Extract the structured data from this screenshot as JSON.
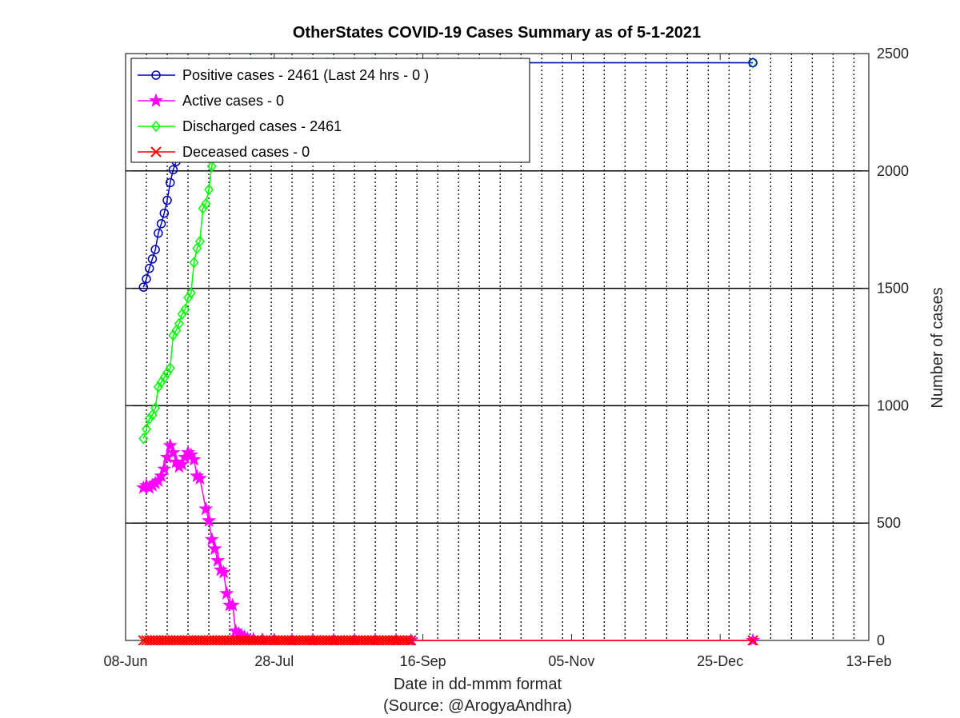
{
  "chart_data": {
    "type": "line",
    "title": "OtherStates COVID-19 Cases Summary as of 5-1-2021",
    "xlabel": "Date in dd-mmm format",
    "source_label": "(Source: @ArogyaAndhra)",
    "ylabel": "Number of cases",
    "x_ticks": [
      "08-Jun",
      "28-Jul",
      "16-Sep",
      "05-Nov",
      "25-Dec",
      "13-Feb"
    ],
    "y_ticks": [
      "0",
      "500",
      "1000",
      "1500",
      "2000",
      "2500"
    ],
    "xlim": [
      "2020-06-08",
      "2021-02-13"
    ],
    "ylim": [
      0,
      2500
    ],
    "x_grid": "dotted, every 7 days",
    "y_grid": "solid",
    "y_axis_side": "right",
    "legend_position": "top-left",
    "series": [
      {
        "name": "Positive cases - 2461 (Last 24 hrs - 0 )",
        "color": "#0000c0",
        "marker": "circle",
        "points": [
          [
            "2020-06-14",
            1505
          ],
          [
            "2020-06-15",
            1540
          ],
          [
            "2020-06-16",
            1585
          ],
          [
            "2020-06-17",
            1625
          ],
          [
            "2020-06-18",
            1665
          ],
          [
            "2020-06-19",
            1735
          ],
          [
            "2020-06-20",
            1775
          ],
          [
            "2020-06-21",
            1820
          ],
          [
            "2020-06-22",
            1875
          ],
          [
            "2020-06-23",
            1950
          ],
          [
            "2020-06-24",
            2005
          ],
          [
            "2020-06-25",
            2040
          ],
          [
            "2020-06-26",
            2120
          ],
          [
            "2020-06-27",
            2200
          ],
          [
            "2020-06-28",
            2280
          ],
          [
            "2020-06-29",
            2350
          ],
          [
            "2020-06-30",
            2410
          ],
          [
            "2020-07-01",
            2461
          ],
          [
            "2020-07-10",
            2461
          ],
          [
            "2020-07-20",
            2461
          ],
          [
            "2020-08-01",
            2461
          ],
          [
            "2020-08-15",
            2461
          ],
          [
            "2020-08-30",
            2461
          ],
          [
            "2020-09-10",
            2461
          ],
          [
            "2020-09-12",
            2461
          ],
          [
            "2021-01-05",
            2461
          ]
        ]
      },
      {
        "name": "Active cases - 0",
        "color": "#ff00ff",
        "marker": "star",
        "points": [
          [
            "2020-06-14",
            650
          ],
          [
            "2020-06-15",
            660
          ],
          [
            "2020-06-16",
            650
          ],
          [
            "2020-06-17",
            660
          ],
          [
            "2020-06-18",
            670
          ],
          [
            "2020-06-19",
            680
          ],
          [
            "2020-06-20",
            700
          ],
          [
            "2020-06-21",
            730
          ],
          [
            "2020-06-22",
            780
          ],
          [
            "2020-06-23",
            830
          ],
          [
            "2020-06-24",
            800
          ],
          [
            "2020-06-25",
            760
          ],
          [
            "2020-06-26",
            740
          ],
          [
            "2020-06-27",
            750
          ],
          [
            "2020-06-28",
            780
          ],
          [
            "2020-06-29",
            800
          ],
          [
            "2020-06-30",
            790
          ],
          [
            "2020-07-01",
            770
          ],
          [
            "2020-07-02",
            700
          ],
          [
            "2020-07-03",
            690
          ],
          [
            "2020-07-05",
            560
          ],
          [
            "2020-07-06",
            510
          ],
          [
            "2020-07-07",
            430
          ],
          [
            "2020-07-08",
            390
          ],
          [
            "2020-07-09",
            340
          ],
          [
            "2020-07-10",
            300
          ],
          [
            "2020-07-11",
            290
          ],
          [
            "2020-07-12",
            200
          ],
          [
            "2020-07-13",
            150
          ],
          [
            "2020-07-14",
            150
          ],
          [
            "2020-07-15",
            40
          ],
          [
            "2020-07-16",
            30
          ],
          [
            "2020-07-17",
            20
          ],
          [
            "2020-07-18",
            15
          ],
          [
            "2020-07-19",
            8
          ],
          [
            "2020-07-21",
            5
          ],
          [
            "2020-07-24",
            3
          ],
          [
            "2020-07-28",
            2
          ],
          [
            "2020-08-03",
            0
          ],
          [
            "2020-08-10",
            0
          ],
          [
            "2020-08-17",
            0
          ],
          [
            "2020-08-24",
            0
          ],
          [
            "2020-08-31",
            0
          ],
          [
            "2020-09-07",
            0
          ],
          [
            "2020-09-12",
            0
          ],
          [
            "2021-01-05",
            0
          ]
        ]
      },
      {
        "name": "Discharged cases - 2461",
        "color": "#00ff00",
        "marker": "diamond",
        "points": [
          [
            "2020-06-14",
            860
          ],
          [
            "2020-06-15",
            900
          ],
          [
            "2020-06-16",
            945
          ],
          [
            "2020-06-17",
            960
          ],
          [
            "2020-06-18",
            990
          ],
          [
            "2020-06-19",
            1080
          ],
          [
            "2020-06-20",
            1100
          ],
          [
            "2020-06-21",
            1120
          ],
          [
            "2020-06-22",
            1140
          ],
          [
            "2020-06-23",
            1160
          ],
          [
            "2020-06-24",
            1300
          ],
          [
            "2020-06-25",
            1320
          ],
          [
            "2020-06-26",
            1350
          ],
          [
            "2020-06-27",
            1390
          ],
          [
            "2020-06-28",
            1410
          ],
          [
            "2020-06-29",
            1460
          ],
          [
            "2020-06-30",
            1480
          ],
          [
            "2020-07-01",
            1610
          ],
          [
            "2020-07-02",
            1670
          ],
          [
            "2020-07-03",
            1700
          ],
          [
            "2020-07-04",
            1840
          ],
          [
            "2020-07-05",
            1860
          ],
          [
            "2020-07-06",
            1920
          ],
          [
            "2020-07-07",
            2020
          ],
          [
            "2020-07-08",
            2100
          ],
          [
            "2020-07-09",
            2200
          ],
          [
            "2020-07-10",
            2300
          ],
          [
            "2020-07-11",
            2400
          ],
          [
            "2020-07-12",
            2461
          ],
          [
            "2020-07-20",
            2461
          ],
          [
            "2020-08-01",
            2461
          ],
          [
            "2020-08-15",
            2461
          ],
          [
            "2020-08-30",
            2461
          ],
          [
            "2020-09-12",
            2461
          ],
          [
            "2021-01-05",
            2461
          ]
        ]
      },
      {
        "name": "Deceased cases - 0",
        "color": "#ff0000",
        "marker": "x",
        "daily_value": 0,
        "daily_range": [
          "2020-06-14",
          "2020-09-12"
        ],
        "points": [
          [
            "2021-01-05",
            0
          ]
        ]
      }
    ]
  }
}
